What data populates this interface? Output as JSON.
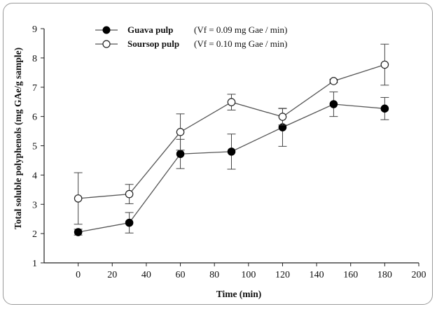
{
  "chart_data": {
    "type": "line",
    "xlabel": "Time (min)",
    "ylabel": "Total soluble polyphenols (mg GAe/g sample)",
    "xlim": [
      -20,
      200
    ],
    "ylim": [
      1,
      9
    ],
    "xticks": [
      0,
      20,
      40,
      60,
      80,
      100,
      120,
      140,
      160,
      180,
      200
    ],
    "yticks": [
      1,
      2,
      3,
      4,
      5,
      6,
      7,
      8,
      9
    ],
    "grid": false,
    "legend_position": "top-left",
    "series": [
      {
        "name": "Guava pulp",
        "rate_text": "(Vf = 0.09 mg Gae / min)",
        "marker": "filled-circle",
        "x": [
          0,
          30,
          60,
          90,
          120,
          150,
          180
        ],
        "values": [
          2.05,
          2.37,
          4.72,
          4.8,
          5.63,
          6.42,
          6.27
        ],
        "errors": [
          0.1,
          0.35,
          0.5,
          0.6,
          0.65,
          0.42,
          0.38
        ]
      },
      {
        "name": "Soursop pulp",
        "rate_text": "(Vf = 0.10 mg Gae / min)",
        "marker": "open-circle",
        "x": [
          0,
          30,
          60,
          90,
          120,
          150,
          180
        ],
        "values": [
          3.2,
          3.35,
          5.47,
          6.49,
          5.99,
          7.21,
          7.77
        ],
        "errors": [
          0.88,
          0.33,
          0.62,
          0.27,
          0.28,
          0.06,
          0.7
        ]
      }
    ]
  },
  "colors": {
    "line": "#555555",
    "marker_fill_dark": "#000000",
    "marker_fill_open": "#ffffff",
    "frame": "#9a9a9a"
  }
}
